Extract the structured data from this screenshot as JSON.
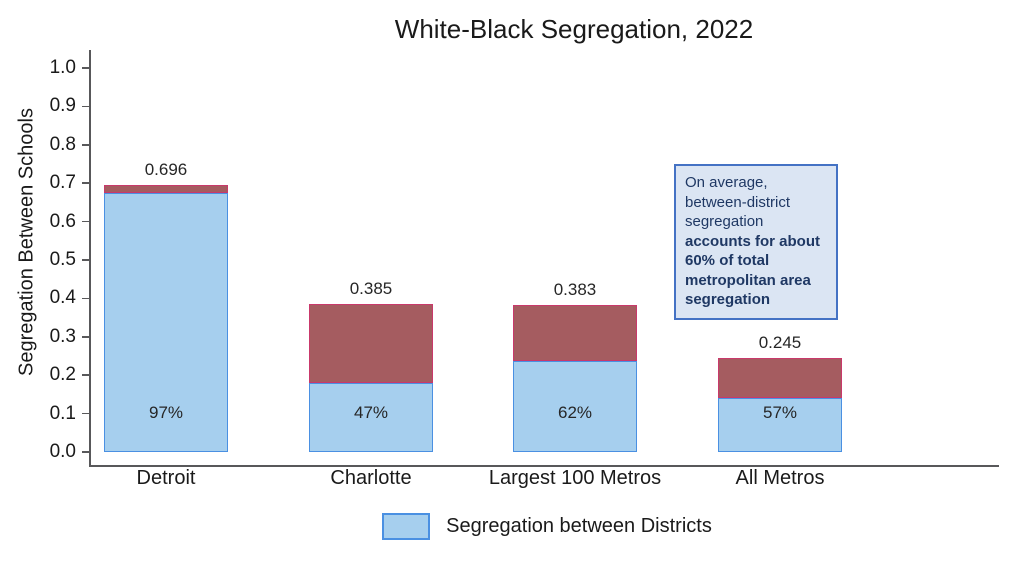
{
  "chart_data": {
    "type": "bar",
    "stacked": true,
    "title": "White-Black Segregation, 2022",
    "xlabel": "",
    "ylabel": "Segregation Between Schools",
    "ylim": [
      0.0,
      1.0
    ],
    "ytick_labels": [
      "0.0",
      "0.1",
      "0.2",
      "0.3",
      "0.4",
      "0.5",
      "0.6",
      "0.7",
      "0.8",
      "0.9",
      "1.0"
    ],
    "grid": false,
    "categories": [
      "Detroit",
      "Charlotte",
      "Largest 100 Metros",
      "All Metros"
    ],
    "series": [
      {
        "name": "Segregation between Districts",
        "values": [
          0.675,
          0.181,
          0.237,
          0.14
        ],
        "fill_color": "#a6cfee",
        "border_color": "#4a90e2",
        "in_legend": true
      },
      {
        "name": "",
        "values": [
          0.021,
          0.204,
          0.146,
          0.105
        ],
        "fill_color": "#a55c60",
        "border_color": "#c9396b",
        "in_legend": false
      }
    ],
    "bars": [
      {
        "category": "Detroit",
        "total": 0.696,
        "total_label": "0.696",
        "district_pct_label": "97%"
      },
      {
        "category": "Charlotte",
        "total": 0.385,
        "total_label": "0.385",
        "district_pct_label": "47%"
      },
      {
        "category": "Largest 100 Metros",
        "total": 0.383,
        "total_label": "0.383",
        "district_pct_label": "62%"
      },
      {
        "category": "All Metros",
        "total": 0.245,
        "total_label": "0.245",
        "district_pct_label": "57%"
      }
    ],
    "legend": {
      "position": "bottom",
      "labels": [
        "Segregation between Districts"
      ]
    }
  },
  "annotation": {
    "text_normal": "On average, between-district segregation",
    "text_bold": "accounts for about 60% of total metropolitan area segregation",
    "bg_color": "#dbe5f3",
    "border_color": "#4472c4",
    "text_color": "#1f3864"
  },
  "colors": {
    "axis": "#58585a",
    "district_fill": "#a6cfee",
    "district_border": "#4a90e2",
    "remainder_fill": "#a55c60",
    "remainder_border": "#c9396b"
  }
}
